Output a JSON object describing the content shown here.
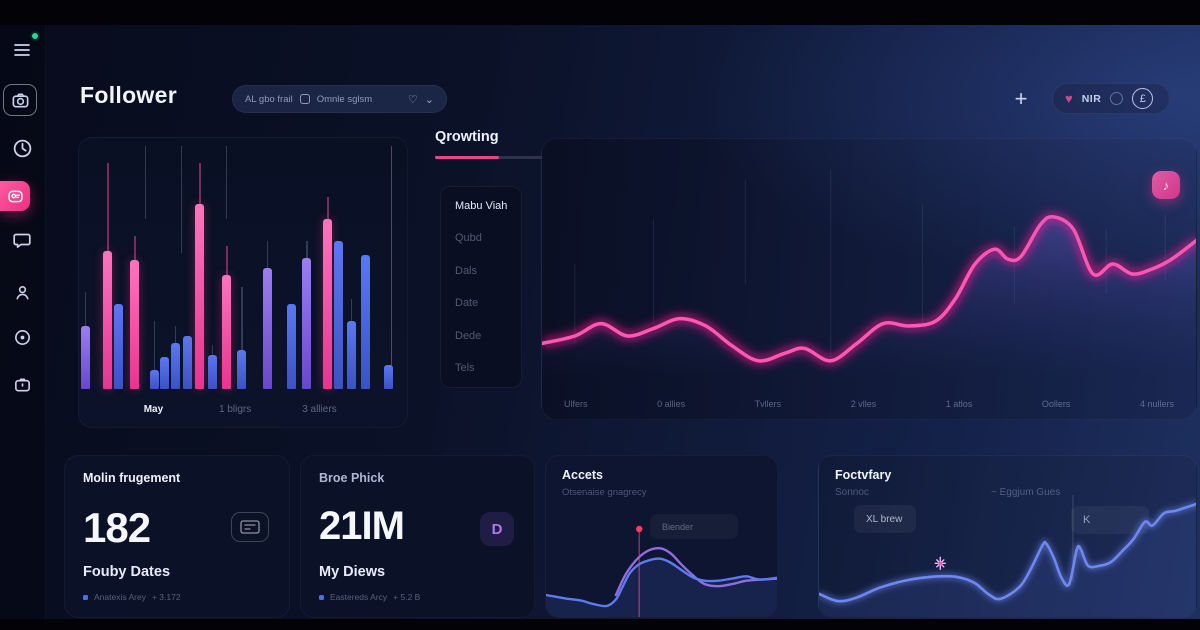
{
  "header": {
    "title": "Follower",
    "search": {
      "segment1": "AL gbo frail",
      "segment2": "Omnle sglsm"
    },
    "add_label": "+",
    "profile": {
      "name": "NIR"
    },
    "icons": {
      "heart": "♥",
      "search_heart": "♡",
      "chevron": "⌄",
      "clock_badge": "£",
      "note": "♪",
      "plus": "+"
    }
  },
  "sidebar": {
    "icons": [
      "menu-icon",
      "camera-icon",
      "history-icon",
      "audience-icon",
      "chat-icon",
      "user-icon",
      "target-icon",
      "briefcase-icon"
    ]
  },
  "growth": {
    "tab_label": "Qrowting",
    "menu": [
      "Mabu Viah",
      "Qubd",
      "Dals",
      "Date",
      "Dede",
      "Tels"
    ]
  },
  "cards": {
    "metric1": {
      "title": "Molin frugement",
      "value": "182",
      "subtitle": "Fouby Dates",
      "legend_label": "Anatexis Arey",
      "legend_delta": "+ 3.172"
    },
    "metric2": {
      "title": "Broe Phick",
      "value": "21IM",
      "subtitle": "My Diews",
      "legend_label": "Eastereds Arcy",
      "legend_delta": "+ 5.2 B",
      "icon_letter": "D"
    },
    "accets": {
      "title": "Accets",
      "subtitle": "Otsenaise gnagrecy",
      "tooltip": "Biender"
    },
    "foctvfary": {
      "title": "Foctvfary",
      "label_left": "Sonnoc",
      "label_right": "~ Eggjum Gues",
      "badge_left": "XL brew",
      "badge_right": "K"
    }
  },
  "colors": {
    "pink": "#ee3c96",
    "purple": "#7e5ce6",
    "blue": "#4d68ea",
    "neon_core": "#ff58b0",
    "neon_glow": "#f5128d",
    "accets_blue": "#5d7bf0",
    "accets_purple": "#a274f2",
    "foct_line": "#6d88f0"
  },
  "chart_data": [
    {
      "type": "bar",
      "title": "Follower activity bars",
      "categories": [
        "May",
        "1 bligrs",
        "3 alliers"
      ],
      "category_x_pct": [
        22.7,
        47.6,
        73.3
      ],
      "ylim": [
        0,
        100
      ],
      "bars": [
        {
          "x": 0.6,
          "h": 26,
          "c": "purple",
          "wick": 14
        },
        {
          "x": 7.4,
          "h": 57,
          "c": "pink",
          "wick": 36
        },
        {
          "x": 10.6,
          "h": 35,
          "c": "blue",
          "wick": 0
        },
        {
          "x": 15.6,
          "h": 53,
          "c": "pink",
          "wick": 10
        },
        {
          "x": 21.6,
          "h": 8,
          "c": "blue",
          "wick": 20
        },
        {
          "x": 24.8,
          "h": 13,
          "c": "blue",
          "wick": 0
        },
        {
          "x": 28.0,
          "h": 19,
          "c": "blue",
          "wick": 7
        },
        {
          "x": 31.6,
          "h": 22,
          "c": "blue",
          "wick": 0
        },
        {
          "x": 35.4,
          "h": 76,
          "c": "pink",
          "wick": 17
        },
        {
          "x": 39.2,
          "h": 14,
          "c": "blue",
          "wick": 4
        },
        {
          "x": 43.6,
          "h": 47,
          "c": "pink",
          "wick": 12
        },
        {
          "x": 48.2,
          "h": 16,
          "c": "blue",
          "wick": 26
        },
        {
          "x": 56.0,
          "h": 50,
          "c": "purple",
          "wick": 11
        },
        {
          "x": 63.4,
          "h": 35,
          "c": "blue",
          "wick": 0
        },
        {
          "x": 68.0,
          "h": 54,
          "c": "purple",
          "wick": 7
        },
        {
          "x": 74.4,
          "h": 70,
          "c": "pink",
          "wick": 9
        },
        {
          "x": 77.6,
          "h": 61,
          "c": "blue",
          "wick": 0
        },
        {
          "x": 81.6,
          "h": 28,
          "c": "blue",
          "wick": 9
        },
        {
          "x": 86.0,
          "h": 55,
          "c": "blue",
          "wick": 0
        },
        {
          "x": 93.0,
          "h": 10,
          "c": "blue",
          "wick": 0
        }
      ],
      "hairlines": [
        {
          "x": 20,
          "y1": 0,
          "y2": 30,
          "c": "grey"
        },
        {
          "x": 31,
          "y1": 0,
          "y2": 44,
          "c": "grey"
        },
        {
          "x": 44.8,
          "y1": 0,
          "y2": 30,
          "c": "grey"
        },
        {
          "x": 95,
          "y1": 0,
          "y2": 100,
          "c": "pink"
        }
      ]
    },
    {
      "type": "line",
      "title": "Follower growth neon line",
      "x_labels": [
        "Ulfers",
        "0 allies",
        "Tvllers",
        "2 vlles",
        "1 atlos",
        "Oollers",
        "4 nullers"
      ],
      "points": [
        [
          0,
          80
        ],
        [
          5,
          77
        ],
        [
          9,
          72
        ],
        [
          13,
          77
        ],
        [
          17,
          74
        ],
        [
          21,
          70
        ],
        [
          25,
          73
        ],
        [
          29,
          81
        ],
        [
          33,
          87
        ],
        [
          37,
          84
        ],
        [
          40,
          82
        ],
        [
          44,
          87
        ],
        [
          48,
          80
        ],
        [
          52,
          72
        ],
        [
          56,
          73
        ],
        [
          60,
          71
        ],
        [
          63,
          62
        ],
        [
          66,
          48
        ],
        [
          69,
          42
        ],
        [
          71,
          46
        ],
        [
          73,
          45
        ],
        [
          76,
          32
        ],
        [
          78,
          29
        ],
        [
          81,
          34
        ],
        [
          84,
          52
        ],
        [
          87,
          48
        ],
        [
          90,
          52
        ],
        [
          93,
          50
        ],
        [
          96,
          46
        ],
        [
          100,
          38
        ]
      ],
      "gridlines": [
        {
          "x": 5,
          "y1": 48,
          "y2": 80
        },
        {
          "x": 17,
          "y1": 30,
          "y2": 72
        },
        {
          "x": 31,
          "y1": 14,
          "y2": 56
        },
        {
          "x": 44,
          "y1": 10,
          "y2": 88
        },
        {
          "x": 58,
          "y1": 24,
          "y2": 74
        },
        {
          "x": 72,
          "y1": 33,
          "y2": 64
        },
        {
          "x": 86,
          "y1": 34,
          "y2": 60
        },
        {
          "x": 95,
          "y1": 28,
          "y2": 55
        }
      ]
    },
    {
      "type": "area",
      "title": "Accets mini chart",
      "series": [
        {
          "name": "blue",
          "points": [
            [
              0,
              80
            ],
            [
              8,
              83
            ],
            [
              15,
              85
            ],
            [
              20,
              88
            ],
            [
              26,
              90
            ],
            [
              30,
              84
            ],
            [
              33,
              72
            ],
            [
              36,
              60
            ],
            [
              40,
              52
            ],
            [
              45,
              48
            ],
            [
              49,
              47
            ],
            [
              53,
              50
            ],
            [
              58,
              57
            ],
            [
              63,
              64
            ],
            [
              68,
              67
            ],
            [
              74,
              67
            ],
            [
              80,
              65
            ],
            [
              86,
              63
            ],
            [
              92,
              66
            ],
            [
              100,
              64
            ]
          ]
        },
        {
          "name": "purple",
          "points": [
            [
              30,
              80
            ],
            [
              34,
              62
            ],
            [
              38,
              50
            ],
            [
              42,
              42
            ],
            [
              46,
              38
            ],
            [
              50,
              38
            ],
            [
              54,
              43
            ],
            [
              58,
              52
            ],
            [
              63,
              62
            ],
            [
              68,
              70
            ],
            [
              74,
              72
            ],
            [
              80,
              70
            ],
            [
              86,
              67
            ],
            [
              92,
              66
            ],
            [
              100,
              65
            ]
          ]
        }
      ],
      "marker": {
        "x": 40,
        "y": 20
      }
    },
    {
      "type": "line",
      "title": "Foctvfary mini chart",
      "points": [
        [
          0,
          81
        ],
        [
          5,
          87
        ],
        [
          10,
          84
        ],
        [
          16,
          76
        ],
        [
          23,
          70
        ],
        [
          30,
          67
        ],
        [
          36,
          67
        ],
        [
          41,
          72
        ],
        [
          45,
          82
        ],
        [
          48,
          85
        ],
        [
          53,
          75
        ],
        [
          56,
          60
        ],
        [
          59,
          41
        ],
        [
          60,
          40
        ],
        [
          62,
          52
        ],
        [
          64,
          68
        ],
        [
          66,
          73
        ],
        [
          68,
          45
        ],
        [
          69,
          44
        ],
        [
          71,
          58
        ],
        [
          74,
          58
        ],
        [
          77,
          55
        ],
        [
          80,
          46
        ],
        [
          83,
          36
        ],
        [
          86,
          22
        ],
        [
          88,
          25
        ],
        [
          91,
          15
        ],
        [
          94,
          13
        ],
        [
          97,
          10
        ],
        [
          100,
          7
        ]
      ],
      "star": {
        "x": 32,
        "y": 56
      },
      "vline": {
        "x": 67,
        "y1": 0,
        "y2": 71
      }
    }
  ]
}
